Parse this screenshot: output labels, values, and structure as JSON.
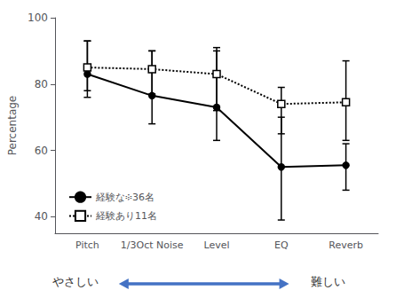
{
  "chart_data": {
    "type": "line",
    "categories": [
      "Pitch",
      "1/3Oct Noise",
      "Level",
      "EQ",
      "Reverb"
    ],
    "ylabel": "Percentage",
    "ylim": [
      35,
      100
    ],
    "yticks": [
      40,
      60,
      80,
      100
    ],
    "grid": false,
    "legend": "lower left",
    "series": [
      {
        "name": "経験な፨36名",
        "color": "#000000",
        "marker": "circle",
        "line_style": "solid",
        "values": [
          83,
          76.5,
          73,
          55,
          55.5
        ],
        "yerr_low": [
          7,
          8.5,
          10,
          16,
          7.5
        ],
        "yerr_high": [
          10,
          13.5,
          17,
          15,
          6.5
        ]
      },
      {
        "name": "経験あり11名",
        "color": "#000000",
        "marker": "open_square",
        "line_style": "dotted",
        "values": [
          85,
          84.5,
          83,
          74,
          74.5
        ],
        "yerr_low": [
          7,
          7.5,
          11,
          9,
          11.5
        ],
        "yerr_high": [
          8,
          5.5,
          8,
          5,
          12.5
        ]
      }
    ],
    "annotations": [
      {
        "type": "double_arrow",
        "left_text": "やさしい",
        "right_text": "難しい",
        "color": "#4472C4"
      }
    ]
  }
}
